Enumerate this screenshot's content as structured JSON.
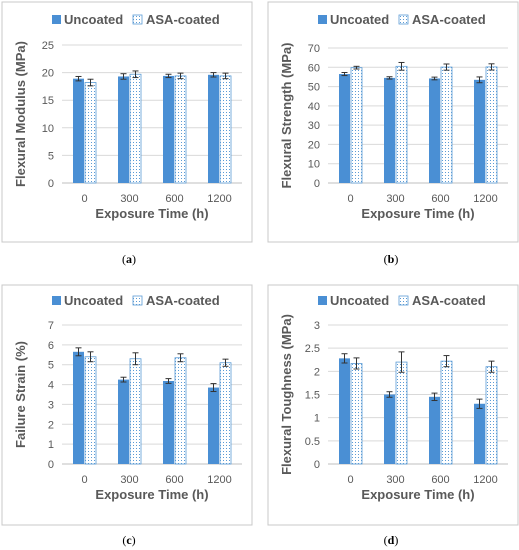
{
  "colors": {
    "uncoated": "#4a8fd4",
    "coated_pattern": "#5b9bd5",
    "axis": "#bfbfbf",
    "grid": "#d9d9d9",
    "text": "#595959",
    "frame": "#c8c8c8"
  },
  "chart_data": [
    {
      "type": "bar",
      "panel_label": "a",
      "ylabel": "Flexural Modulus (MPa)",
      "xlabel": "Exposure Time (h)",
      "categories": [
        "0",
        "300",
        "600",
        "1200"
      ],
      "ylim": [
        0,
        25
      ],
      "yticks": [
        0,
        5,
        10,
        15,
        20,
        25
      ],
      "grid": true,
      "legend_position": "top",
      "series": [
        {
          "name": "Uncoated",
          "values": [
            18.9,
            19.3,
            19.4,
            19.6
          ],
          "errors": [
            0.4,
            0.5,
            0.3,
            0.4
          ]
        },
        {
          "name": "ASA-coated",
          "values": [
            18.2,
            19.7,
            19.4,
            19.4
          ],
          "errors": [
            0.6,
            0.6,
            0.5,
            0.5
          ]
        }
      ]
    },
    {
      "type": "bar",
      "panel_label": "b",
      "ylabel": "Flexural Strength (MPa)",
      "xlabel": "Exposure Time (h)",
      "categories": [
        "0",
        "300",
        "600",
        "1200"
      ],
      "ylim": [
        0,
        70
      ],
      "yticks": [
        0,
        10,
        20,
        30,
        40,
        50,
        60,
        70
      ],
      "grid": true,
      "legend_position": "top",
      "series": [
        {
          "name": "Uncoated",
          "values": [
            56.5,
            54.5,
            54.2,
            53.5
          ],
          "errors": [
            0.8,
            0.6,
            0.7,
            1.5
          ]
        },
        {
          "name": "ASA-coated",
          "values": [
            59.8,
            60.5,
            60.1,
            60.2
          ],
          "errors": [
            0.7,
            2.0,
            1.6,
            1.6
          ]
        }
      ]
    },
    {
      "type": "bar",
      "panel_label": "c",
      "ylabel": "Failure Strain (%)",
      "xlabel": "Exposure Time (h)",
      "categories": [
        "0",
        "300",
        "600",
        "1200"
      ],
      "ylim": [
        0,
        7
      ],
      "yticks": [
        0,
        1,
        2,
        3,
        4,
        5,
        6,
        7
      ],
      "grid": true,
      "legend_position": "top",
      "series": [
        {
          "name": "Uncoated",
          "values": [
            5.65,
            4.25,
            4.18,
            3.85
          ],
          "errors": [
            0.2,
            0.12,
            0.12,
            0.2
          ]
        },
        {
          "name": "ASA-coated",
          "values": [
            5.4,
            5.3,
            5.35,
            5.1
          ],
          "errors": [
            0.25,
            0.3,
            0.2,
            0.18
          ]
        }
      ]
    },
    {
      "type": "bar",
      "panel_label": "d",
      "ylabel": "Flexural Toughness (MPa)",
      "xlabel": "Exposure Time (h)",
      "categories": [
        "0",
        "300",
        "600",
        "1200"
      ],
      "ylim": [
        0,
        3
      ],
      "yticks": [
        "0",
        "0.5",
        "1",
        "1.5",
        "2",
        "2.5",
        "3"
      ],
      "grid": true,
      "legend_position": "top",
      "series": [
        {
          "name": "Uncoated",
          "values": [
            2.28,
            1.5,
            1.45,
            1.3
          ],
          "errors": [
            0.1,
            0.06,
            0.08,
            0.1
          ]
        },
        {
          "name": "ASA-coated",
          "values": [
            2.17,
            2.2,
            2.22,
            2.1
          ],
          "errors": [
            0.12,
            0.22,
            0.12,
            0.12
          ]
        }
      ]
    }
  ]
}
